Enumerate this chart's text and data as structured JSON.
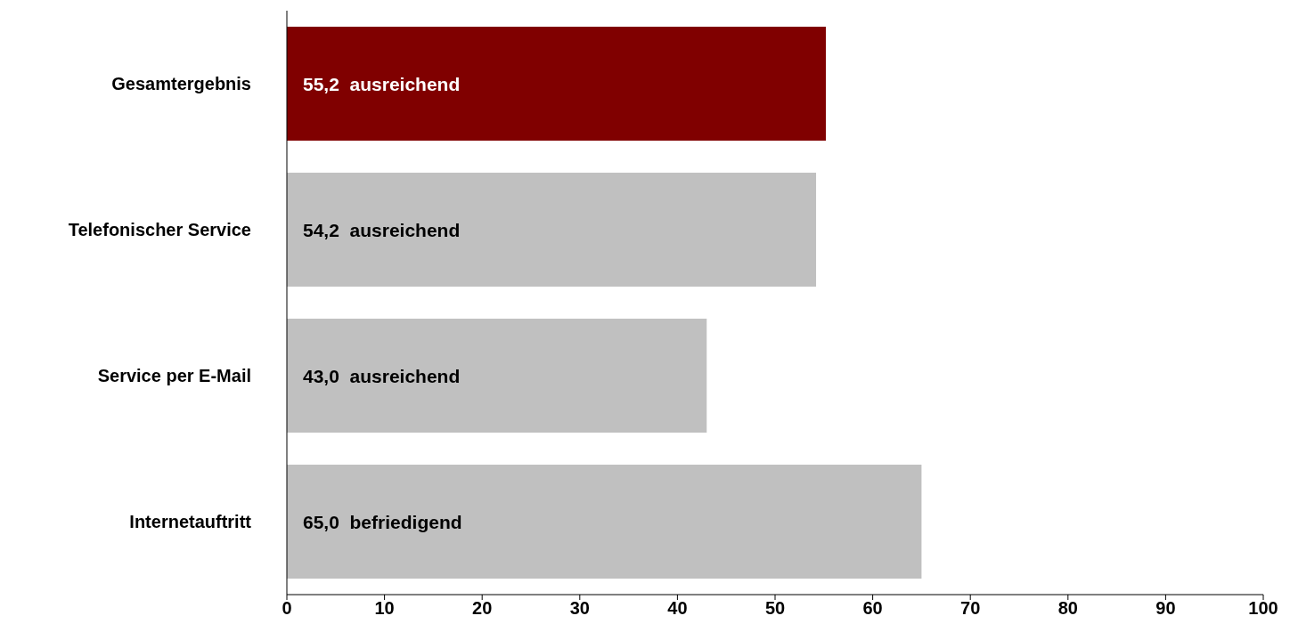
{
  "chart_data": {
    "type": "bar",
    "orientation": "horizontal",
    "categories": [
      "Gesamtergebnis",
      "Telefonischer Service",
      "Service per E-Mail",
      "Internetauftritt"
    ],
    "values": [
      55.2,
      54.2,
      43.0,
      65.0
    ],
    "colors": [
      "#800000",
      "#c0c0c0",
      "#c0c0c0",
      "#c0c0c0"
    ],
    "value_labels": [
      "55,2  ausreichend",
      "54,2  ausreichend",
      "43,0  ausreichend",
      "65,0  befriedigend"
    ],
    "xlim": [
      0,
      100
    ],
    "xticks": [
      0,
      10,
      20,
      30,
      40,
      50,
      60,
      70,
      80,
      90,
      100
    ],
    "grid": false
  }
}
